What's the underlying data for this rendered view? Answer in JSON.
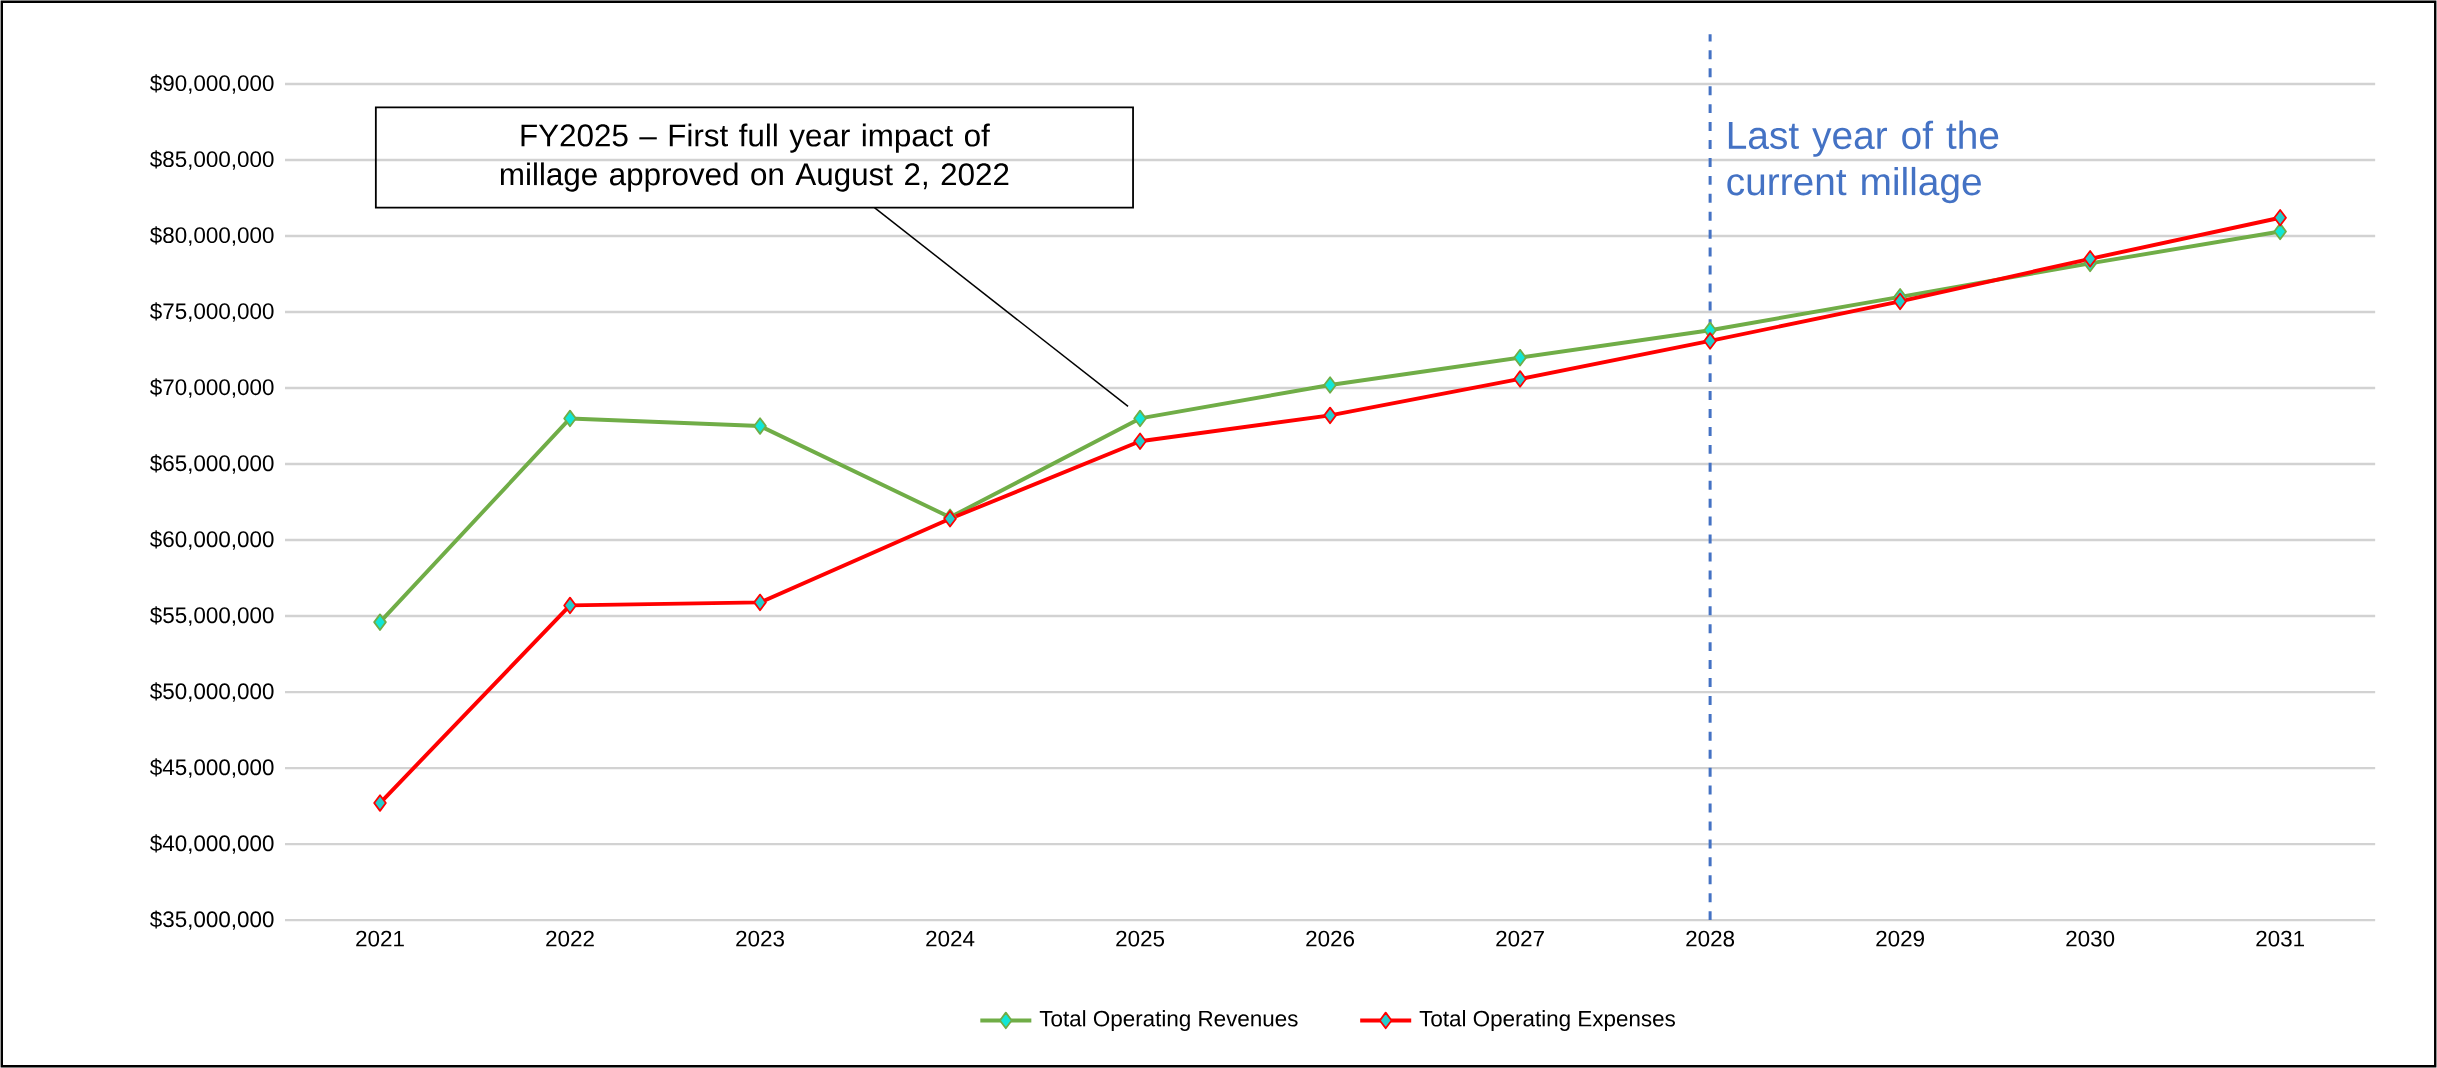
{
  "chart_data": {
    "type": "line",
    "categories": [
      "2021",
      "2022",
      "2023",
      "2024",
      "2025",
      "2026",
      "2027",
      "2028",
      "2029",
      "2030",
      "2031"
    ],
    "series": [
      {
        "name": "Total Operating Revenues",
        "color": "#70ad47",
        "values": [
          54600000,
          68000000,
          67500000,
          61500000,
          68000000,
          70200000,
          72000000,
          73800000,
          76000000,
          78200000,
          80300000
        ]
      },
      {
        "name": "Total Operating Expenses",
        "color": "#ff0000",
        "values": [
          42700000,
          55700000,
          55900000,
          61400000,
          66500000,
          68200000,
          70600000,
          73100000,
          75700000,
          78500000,
          81200000
        ]
      }
    ],
    "ylim": [
      35000000,
      90000000
    ],
    "yticks": [
      {
        "value": 35000000,
        "label": "$35,000,000"
      },
      {
        "value": 40000000,
        "label": "$40,000,000"
      },
      {
        "value": 45000000,
        "label": "$45,000,000"
      },
      {
        "value": 50000000,
        "label": "$50,000,000"
      },
      {
        "value": 55000000,
        "label": "$55,000,000"
      },
      {
        "value": 60000000,
        "label": "$60,000,000"
      },
      {
        "value": 65000000,
        "label": "$65,000,000"
      },
      {
        "value": 70000000,
        "label": "$70,000,000"
      },
      {
        "value": 75000000,
        "label": "$75,000,000"
      },
      {
        "value": 80000000,
        "label": "$80,000,000"
      },
      {
        "value": 85000000,
        "label": "$85,000,000"
      },
      {
        "value": 90000000,
        "label": "$90,000,000"
      }
    ],
    "grid": "y",
    "legend": "bottom",
    "marker": "diamond",
    "line_style": "solid",
    "ref_lines": [
      {
        "axis": "x",
        "value": "2028",
        "label": "Last year of the current millage",
        "color": "#4472c4",
        "line_style": "dashed"
      }
    ],
    "annotations": [
      "FY2025 – First full year impact of millage approved on August 2, 2022"
    ]
  }
}
